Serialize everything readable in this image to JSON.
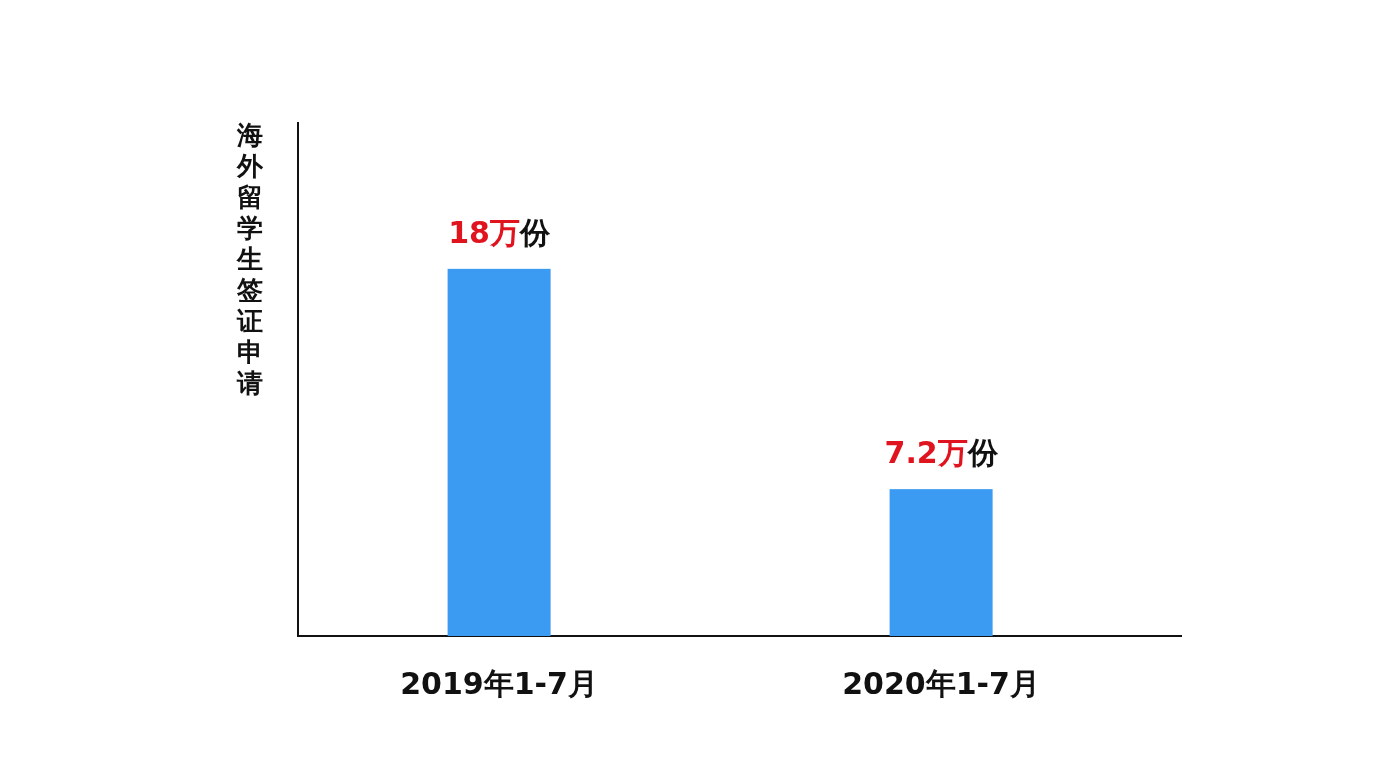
{
  "chart_data": {
    "type": "bar",
    "ylabel": "海外留学生签证申请",
    "categories": [
      "2019年1-7月",
      "2020年1-7月"
    ],
    "values": [
      18,
      7.2
    ],
    "color": "#3b9af2",
    "value_labels": [
      "18万份",
      "7.2万份"
    ]
  }
}
